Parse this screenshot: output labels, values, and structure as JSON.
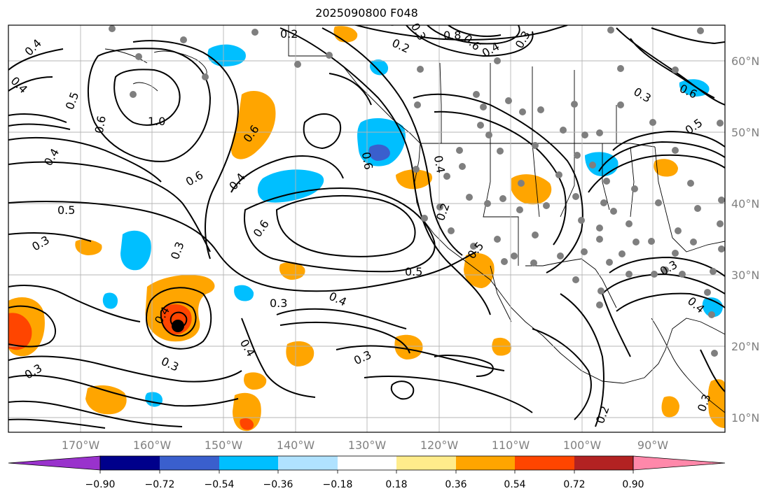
{
  "title": "2025090800 F048",
  "map": {
    "lon_labels": [
      "170°W",
      "160°W",
      "150°W",
      "140°W",
      "130°W",
      "120°W",
      "110°W",
      "100°W",
      "90°W"
    ],
    "lat_labels": [
      "60°N",
      "50°N",
      "40°N",
      "30°N",
      "20°N",
      "10°N"
    ],
    "contour_labels": [
      "0.4",
      "0.2",
      "0.3",
      "0.8",
      "0.6",
      "0.4",
      "0.3",
      "0.4",
      "0.5",
      "0.6",
      "1.0",
      "0.4",
      "0.6",
      "0.4",
      "0.6",
      "0.3",
      "0.6",
      "0.5",
      "0.5",
      "0.3",
      "0.3",
      "0.6",
      "0.4",
      "0.2",
      "0.5",
      "0.3",
      "0.4",
      "0.4",
      "0.3",
      "0.3",
      "0.4",
      "0.2",
      "0.3",
      "0.2",
      "0.6",
      "0.3",
      "0.5",
      "0.4",
      "0.3"
    ]
  },
  "colorbar": {
    "ticks": [
      "−0.90",
      "−0.72",
      "−0.54",
      "−0.36",
      "−0.18",
      "0.18",
      "0.36",
      "0.54",
      "0.72",
      "0.90"
    ],
    "colors": [
      "#9932cc",
      "#00008b",
      "#3a5fcd",
      "#00bfff",
      "#b0e2ff",
      "#ffffff",
      "#ffec8b",
      "#ffa500",
      "#ff4500",
      "#b22222",
      "#ff88aa"
    ]
  }
}
